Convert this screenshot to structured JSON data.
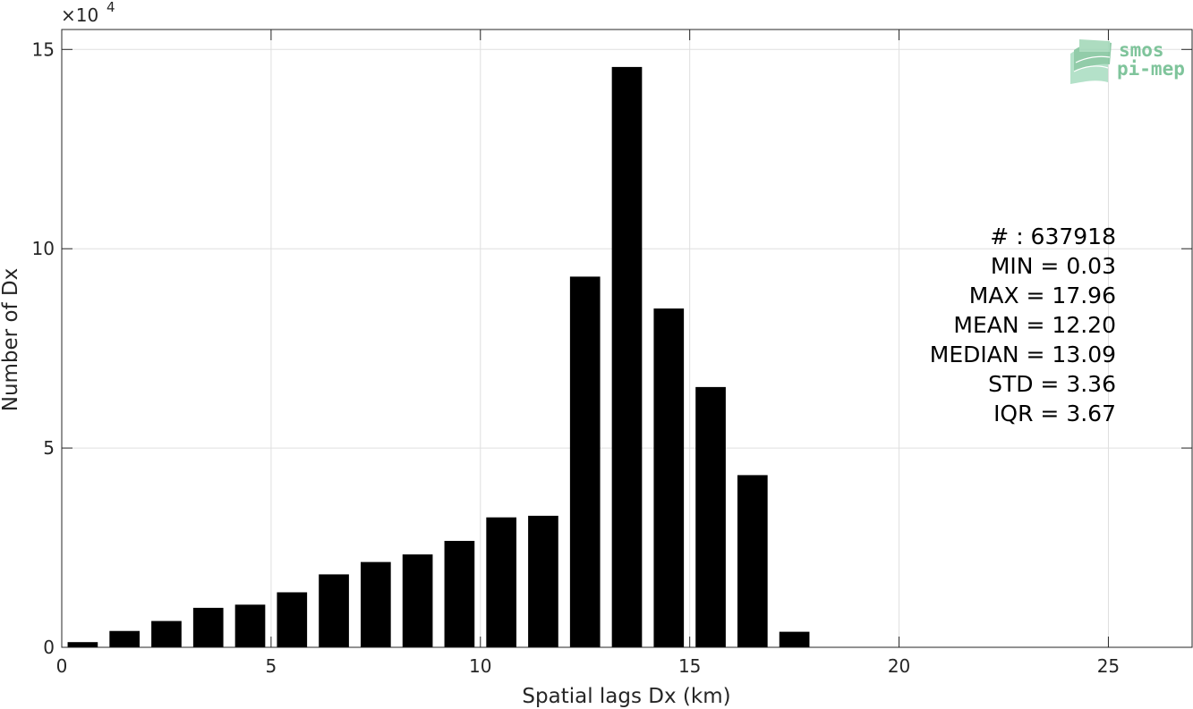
{
  "chart_data": {
    "type": "bar",
    "title": "",
    "xlabel": "Spatial lags Dx (km)",
    "ylabel": "Number of Dx",
    "y_multiplier": {
      "base": "×10",
      "exponent": "4"
    },
    "xlim": [
      0,
      27
    ],
    "ylim": [
      0,
      155000
    ],
    "x_ticks": [
      0,
      5,
      10,
      15,
      20,
      25
    ],
    "x_tick_labels": [
      "0",
      "5",
      "10",
      "15",
      "20",
      "25"
    ],
    "y_ticks": [
      0,
      50000,
      100000,
      150000
    ],
    "y_tick_labels": [
      "0",
      "5",
      "10",
      "15"
    ],
    "grid": true,
    "bar_width": 0.72,
    "bar_color": "#000000",
    "x": [
      0.5,
      1.5,
      2.5,
      3.5,
      4.5,
      5.5,
      6.5,
      7.5,
      8.5,
      9.5,
      10.5,
      11.5,
      12.5,
      13.5,
      14.5,
      15.5,
      16.5,
      17.5
    ],
    "values": [
      1300,
      4100,
      6600,
      9900,
      10700,
      13800,
      18300,
      21400,
      23300,
      26700,
      32600,
      33000,
      93000,
      145600,
      85000,
      65300,
      43200,
      3900
    ],
    "annotations": [
      "# : 637918",
      "MIN = 0.03",
      "MAX =  17.96",
      "MEAN = 12.20",
      "MEDIAN = 13.09",
      "STD = 3.36",
      "IQR = 3.67"
    ]
  },
  "logo": {
    "line1": "smos",
    "line2": "pi-mep",
    "color": "#7fc49b"
  }
}
